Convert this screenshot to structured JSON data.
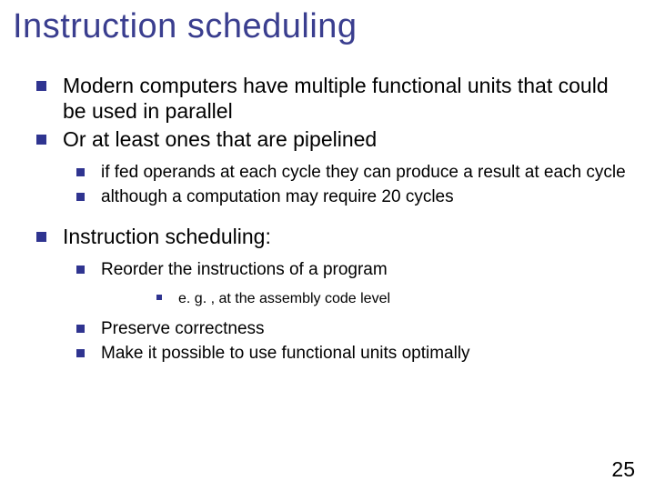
{
  "colors": {
    "title": "#3a3e8f",
    "body": "#000000",
    "bullet": "#2f3490",
    "pagenum": "#000000",
    "background": "#ffffff"
  },
  "title": "Instruction scheduling",
  "page_number": "25",
  "bullets": {
    "a1": "Modern computers have multiple functional units that could be used in parallel",
    "a2": " Or at least ones that are pipelined",
    "b1": "if fed operands at each cycle they can produce a result at each cycle",
    "b2": "although a computation may require 20 cycles",
    "c1": "Instruction scheduling:",
    "d1": "Reorder the instructions of a program",
    "e1": "e. g. , at the assembly code level",
    "d2": "Preserve correctness",
    "d3": "Make it possible to use functional units optimally"
  }
}
